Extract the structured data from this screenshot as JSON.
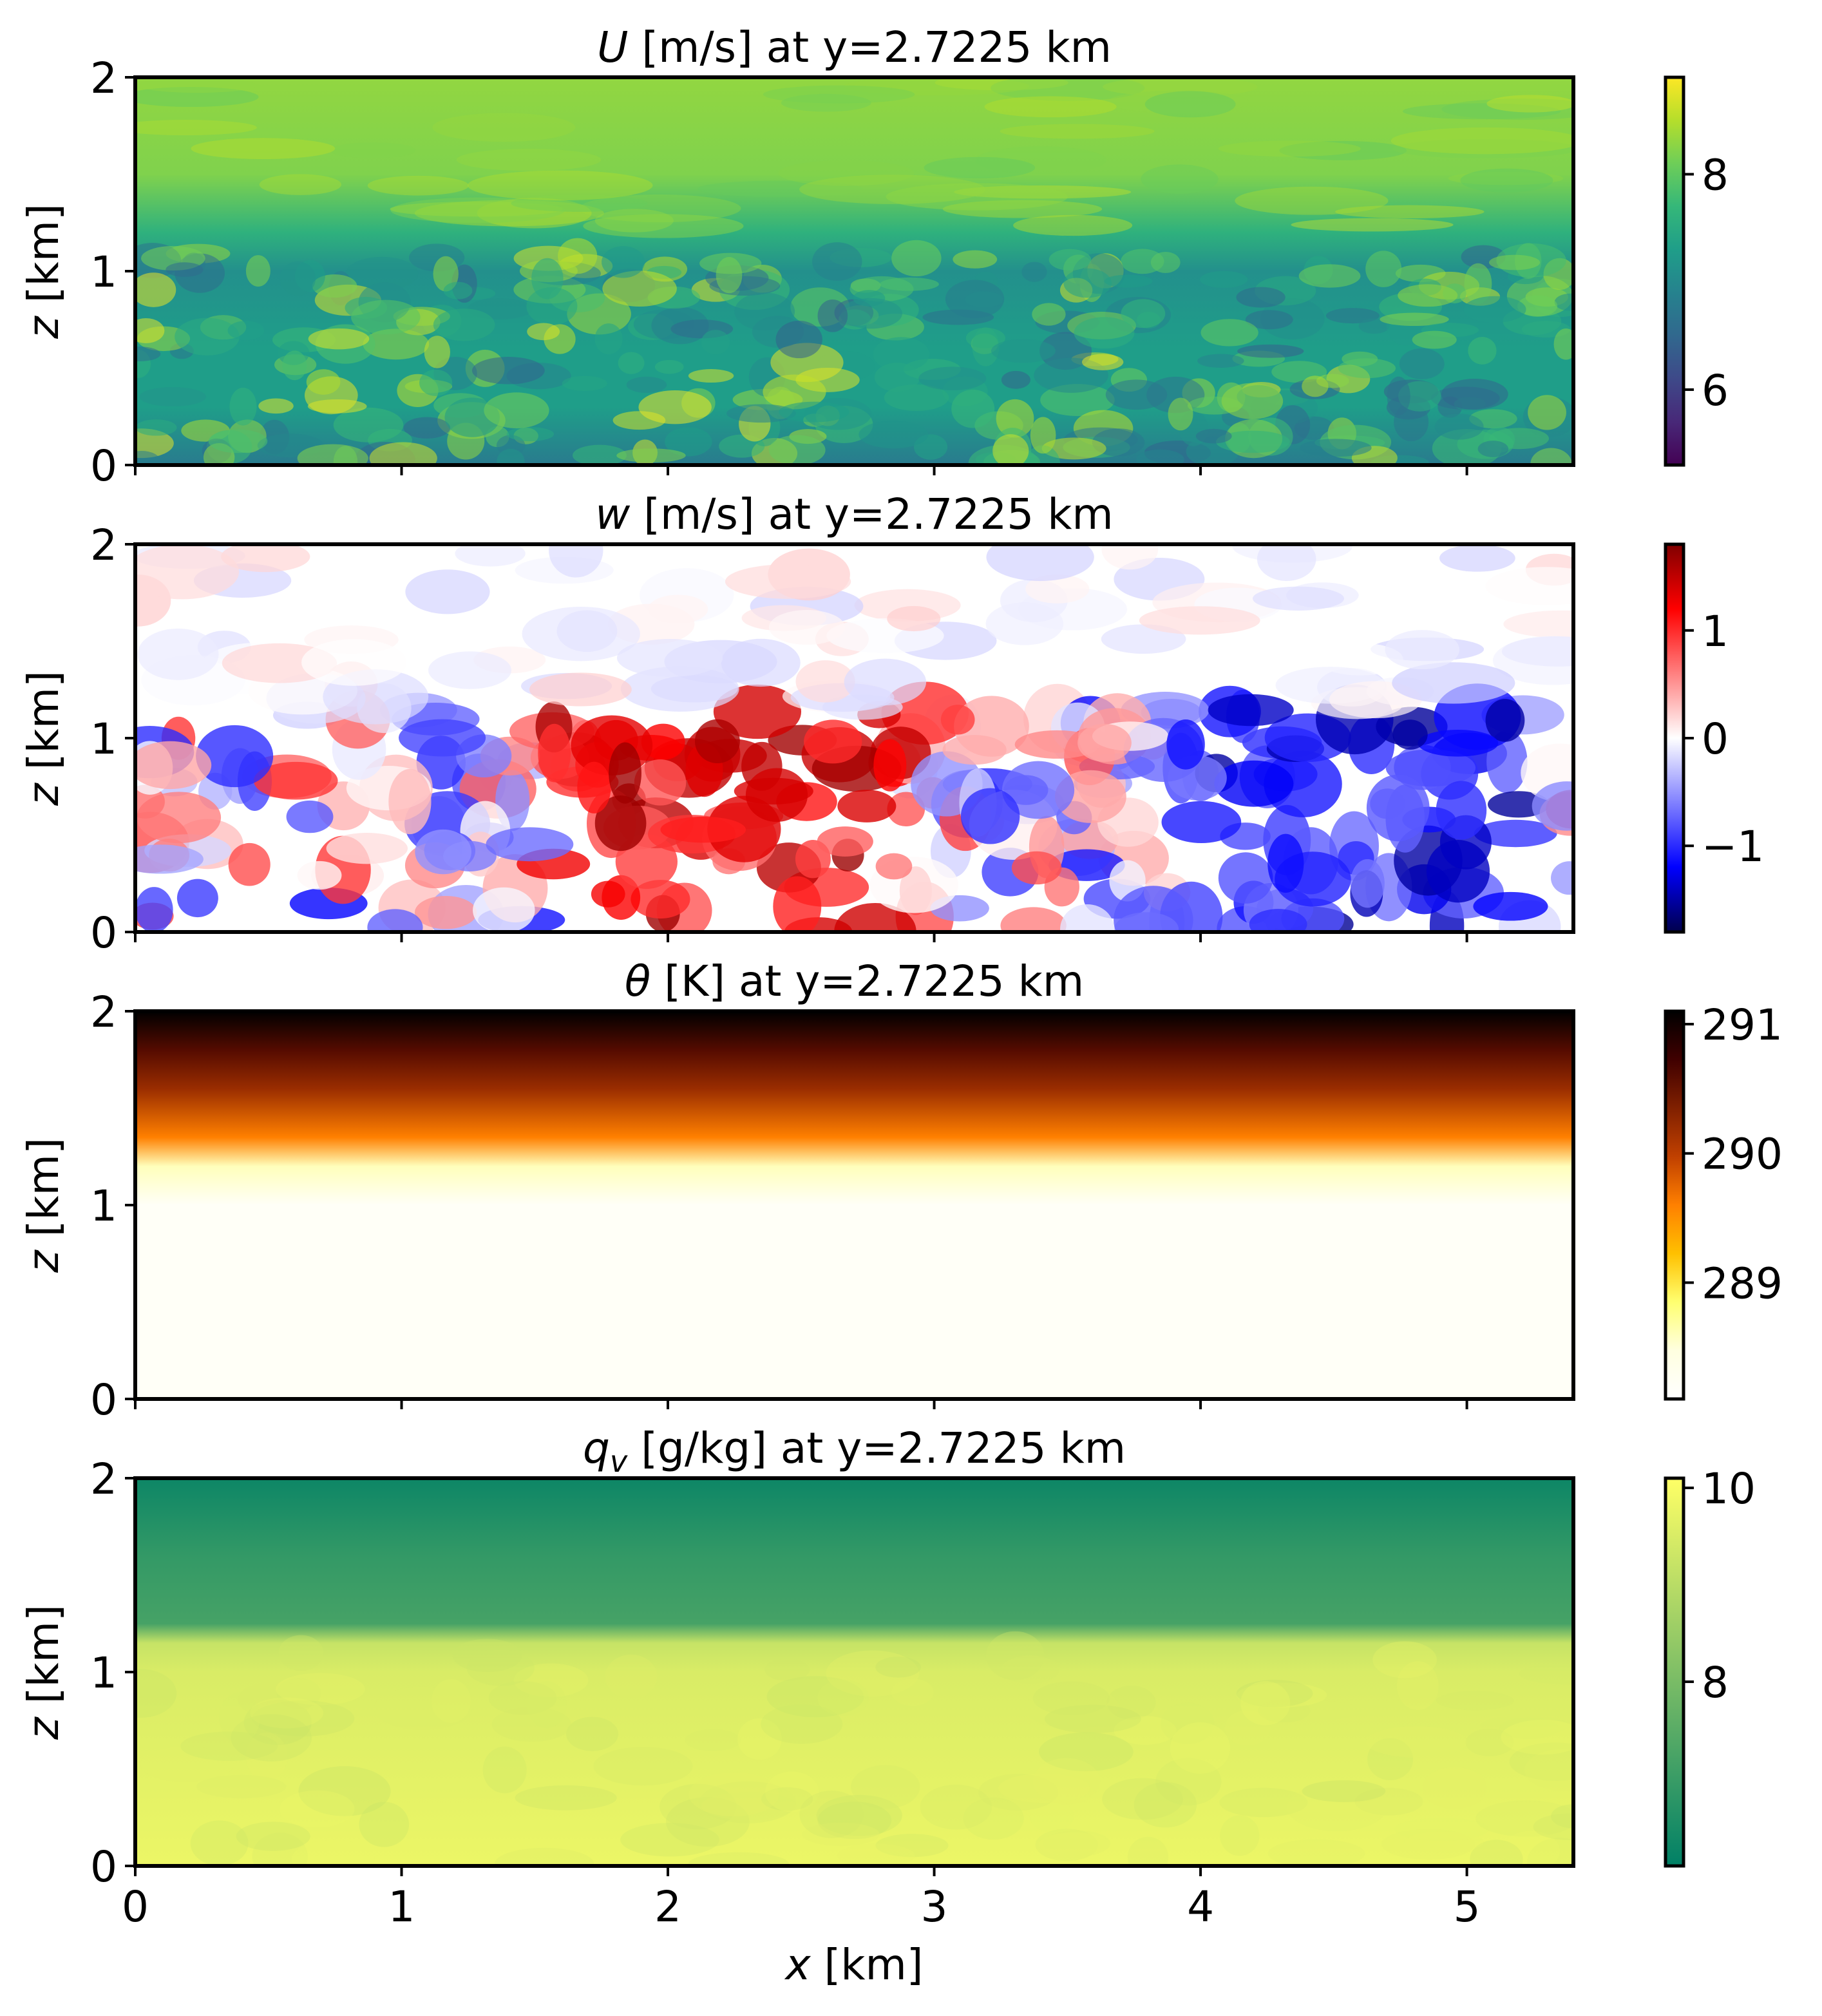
{
  "chart_data": [
    {
      "type": "heatmap",
      "title_var": "U",
      "title_rest": " [m/s] at y=2.7225 km",
      "xlabel": "",
      "ylabel_var": "z",
      "ylabel_rest": " [km]",
      "xlim": [
        0,
        5.4
      ],
      "ylim": [
        0,
        2
      ],
      "yticks": [
        "0",
        "1",
        "2"
      ],
      "xtick_labels_shown": false,
      "colormap": "viridis",
      "colorbar": {
        "range": [
          5.3,
          8.9
        ],
        "ticks": [
          6,
          8
        ],
        "tick_labels": [
          "6",
          "8"
        ]
      },
      "description_field": "turbulent boundary layer below ~1.1 km, smoother flow above ~1.2 km",
      "z_profile": [
        {
          "z": 0.0,
          "value": 6.8
        },
        {
          "z": 0.3,
          "value": 7.3
        },
        {
          "z": 0.6,
          "value": 7.3
        },
        {
          "z": 1.0,
          "value": 7.1
        },
        {
          "z": 1.2,
          "value": 7.6
        },
        {
          "z": 1.5,
          "value": 8.2
        },
        {
          "z": 2.0,
          "value": 8.3
        }
      ]
    },
    {
      "type": "heatmap",
      "title_var": "w",
      "title_rest": " [m/s] at y=2.7225 km",
      "xlabel": "",
      "ylabel_var": "z",
      "ylabel_rest": " [km]",
      "xlim": [
        0,
        5.4
      ],
      "ylim": [
        0,
        2
      ],
      "yticks": [
        "0",
        "1",
        "2"
      ],
      "xtick_labels_shown": false,
      "colormap": "seismic",
      "colorbar": {
        "range": [
          -1.8,
          1.8
        ],
        "ticks": [
          -1,
          0,
          1
        ],
        "tick_labels": [
          "−1",
          "0",
          "1"
        ]
      },
      "description_field": "strong updraft plume near x 1.5-3 km, downdrafts near x 4-5 km, weak values above 1.2 km",
      "z_profile": [
        {
          "z": 0.0,
          "value": 0.0
        },
        {
          "z": 0.5,
          "value": 0.0
        },
        {
          "z": 1.0,
          "value": 0.0
        },
        {
          "z": 1.5,
          "value": 0.0
        },
        {
          "z": 2.0,
          "value": 0.0
        }
      ]
    },
    {
      "type": "heatmap",
      "title_var": "θ",
      "title_rest": " [K] at y=2.7225 km",
      "xlabel": "",
      "ylabel_var": "z",
      "ylabel_rest": " [km]",
      "xlim": [
        0,
        5.4
      ],
      "ylim": [
        0,
        2
      ],
      "yticks": [
        "0",
        "1",
        "2"
      ],
      "xtick_labels_shown": false,
      "colormap": "afmhot_r",
      "colorbar": {
        "range": [
          288.1,
          291.1
        ],
        "ticks": [
          289,
          290,
          291
        ],
        "tick_labels": [
          "289",
          "290",
          "291"
        ]
      },
      "description_field": "well-mixed layer ~288.2 K below ~1.2 km, inversion warming to ~291 K at 2 km",
      "z_profile": [
        {
          "z": 0.0,
          "value": 288.2
        },
        {
          "z": 1.0,
          "value": 288.2
        },
        {
          "z": 1.2,
          "value": 288.6
        },
        {
          "z": 1.35,
          "value": 289.6
        },
        {
          "z": 1.6,
          "value": 290.2
        },
        {
          "z": 1.8,
          "value": 290.6
        },
        {
          "z": 2.0,
          "value": 291.1
        }
      ]
    },
    {
      "type": "heatmap",
      "title_var": "q",
      "title_sub": "v",
      "title_rest": " [g/kg] at y=2.7225 km",
      "xlabel_var": "x",
      "xlabel_rest": " [km]",
      "ylabel_var": "z",
      "ylabel_rest": " [km]",
      "xlim": [
        0,
        5.4
      ],
      "ylim": [
        0,
        2
      ],
      "xticks": [
        "0",
        "1",
        "2",
        "3",
        "4",
        "5"
      ],
      "yticks": [
        "0",
        "1",
        "2"
      ],
      "xtick_labels_shown": true,
      "colormap": "summer",
      "colorbar": {
        "range": [
          6.1,
          10.1
        ],
        "ticks": [
          8,
          10
        ],
        "tick_labels": [
          "8",
          "10"
        ]
      },
      "description_field": "moist mixed layer ~9.6 g/kg below ~1.15 km, drier ~6.5-7 g/kg above",
      "z_profile": [
        {
          "z": 0.0,
          "value": 9.8
        },
        {
          "z": 1.0,
          "value": 9.5
        },
        {
          "z": 1.15,
          "value": 9.2
        },
        {
          "z": 1.25,
          "value": 7.2
        },
        {
          "z": 1.6,
          "value": 6.9
        },
        {
          "z": 2.0,
          "value": 6.3
        }
      ]
    }
  ]
}
